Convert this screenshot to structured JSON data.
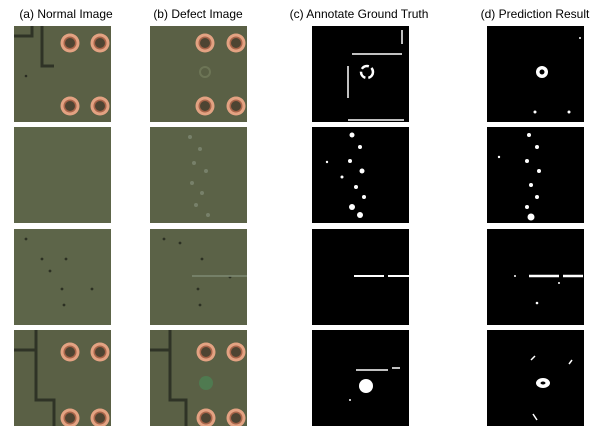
{
  "columns": [
    "(a) Normal Image",
    "(b) Defect Image",
    "(c) Annotate Ground Truth",
    "(d) Prediction Result"
  ]
}
